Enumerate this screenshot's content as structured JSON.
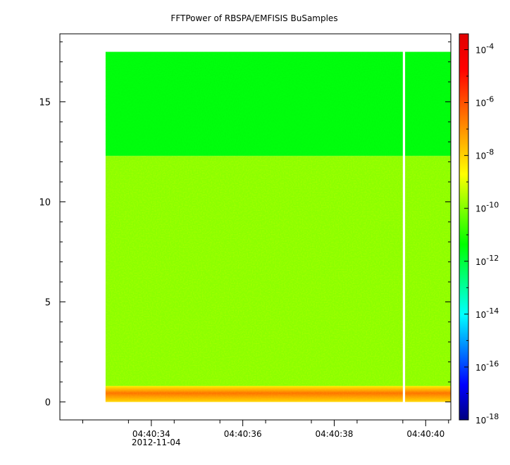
{
  "chart_data": {
    "type": "heatmap",
    "title": "FFTPower of RBSPA/EMFISIS  BuSamples",
    "xlabel": "",
    "ylabel": "",
    "x_tick_labels": [
      "04:40:34",
      "04:40:36",
      "04:40:38",
      "04:40:40"
    ],
    "x_tick_sublabels": [
      "2012-11-04",
      "",
      "",
      ""
    ],
    "x_tick_values_s": [
      34,
      36,
      38,
      40
    ],
    "x_range_s": [
      32.0,
      40.55
    ],
    "x_minor_ticks_s": [
      32.5,
      33.5,
      34.5,
      35.5,
      36.5,
      37.5,
      38.5,
      39.5,
      40.5
    ],
    "y_ticks": [
      0,
      5,
      10,
      15
    ],
    "y_range": [
      -0.9,
      18.4
    ],
    "colorbar": {
      "scale": "log",
      "range_exp": [
        -18,
        -3.4
      ],
      "tick_base": "10",
      "tick_exponents": [
        "-4",
        "-6",
        "-8",
        "-10",
        "-12",
        "-14",
        "-16",
        "-18"
      ],
      "tick_values_exp": [
        -4,
        -6,
        -8,
        -10,
        -12,
        -14,
        -16,
        -18
      ],
      "palette": [
        "#00007f",
        "#0000ff",
        "#007fff",
        "#00ffff",
        "#00ff7f",
        "#00ff00",
        "#7fff00",
        "#ffff00",
        "#ffaa00",
        "#ff5500",
        "#ff0000",
        "#e00000"
      ]
    },
    "data": {
      "x_start_s": 33.0,
      "x_end_s": 40.55,
      "gap_s": [
        39.5,
        39.55
      ],
      "bands": [
        {
          "y_from": 0.0,
          "y_to": 0.8,
          "log_power_min": -8.5,
          "log_power_max": -6.5
        },
        {
          "y_from": 0.8,
          "y_to": 12.3,
          "log_power_min": -10.5,
          "log_power_max": -9.3
        },
        {
          "y_from": 12.3,
          "y_to": 17.5,
          "log_power_min": -11.8,
          "log_power_max": -11.2
        }
      ]
    }
  }
}
